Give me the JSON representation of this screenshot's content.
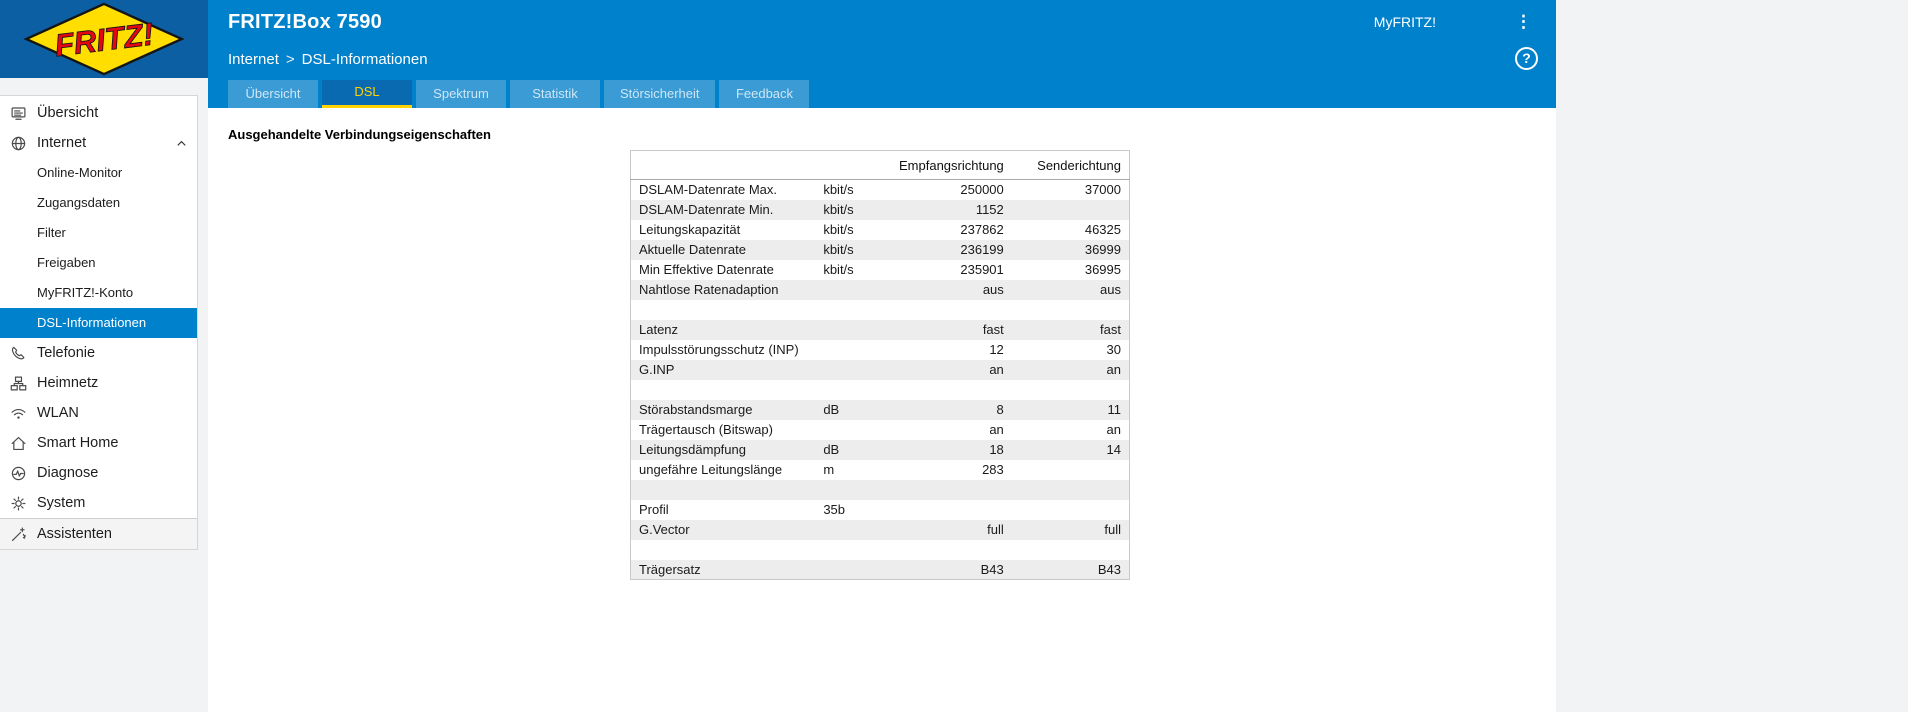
{
  "header": {
    "logo_text": "FRITZ!",
    "title": "FRITZ!Box 7590",
    "myfritz_label": "MyFRITZ!",
    "menu_icon": "kebab-menu-icon"
  },
  "breadcrumb": {
    "section": "Internet",
    "separator": ">",
    "page": "DSL-Informationen"
  },
  "help_label": "?",
  "tabs": [
    {
      "label": "Übersicht",
      "active": false
    },
    {
      "label": "DSL",
      "active": true
    },
    {
      "label": "Spektrum",
      "active": false
    },
    {
      "label": "Statistik",
      "active": false
    },
    {
      "label": "Störsicherheit",
      "active": false
    },
    {
      "label": "Feedback",
      "active": false
    }
  ],
  "sidebar": {
    "items": [
      {
        "label": "Übersicht",
        "icon": "overview-icon",
        "type": "top"
      },
      {
        "label": "Internet",
        "icon": "globe-icon",
        "type": "top",
        "expanded": true,
        "children": [
          "Online-Monitor",
          "Zugangsdaten",
          "Filter",
          "Freigaben",
          "MyFRITZ!-Konto",
          "DSL-Informationen"
        ],
        "active_child": "DSL-Informationen"
      },
      {
        "label": "Telefonie",
        "icon": "phone-icon",
        "type": "top"
      },
      {
        "label": "Heimnetz",
        "icon": "network-icon",
        "type": "top"
      },
      {
        "label": "WLAN",
        "icon": "wifi-icon",
        "type": "top"
      },
      {
        "label": "Smart Home",
        "icon": "smarthome-icon",
        "type": "top"
      },
      {
        "label": "Diagnose",
        "icon": "diagnose-icon",
        "type": "top"
      },
      {
        "label": "System",
        "icon": "system-icon",
        "type": "top"
      },
      {
        "label": "Assistenten",
        "icon": "assistant-icon",
        "type": "footer"
      }
    ]
  },
  "main": {
    "heading": "Ausgehandelte Verbindungseigenschaften",
    "table": {
      "columns": [
        "",
        "",
        "Empfangsrichtung",
        "Senderichtung"
      ],
      "rows": [
        [
          "DSLAM-Datenrate Max.",
          "kbit/s",
          "250000",
          "37000"
        ],
        [
          "DSLAM-Datenrate Min.",
          "kbit/s",
          "1152",
          ""
        ],
        [
          "Leitungskapazität",
          "kbit/s",
          "237862",
          "46325"
        ],
        [
          "Aktuelle Datenrate",
          "kbit/s",
          "236199",
          "36999"
        ],
        [
          "Min Effektive Datenrate",
          "kbit/s",
          "235901",
          "36995"
        ],
        [
          "Nahtlose Ratenadaption",
          "",
          "aus",
          "aus"
        ],
        [
          "",
          "",
          "",
          ""
        ],
        [
          "Latenz",
          "",
          "fast",
          "fast"
        ],
        [
          "Impulsstörungsschutz (INP)",
          "",
          "12",
          "30"
        ],
        [
          "G.INP",
          "",
          "an",
          "an"
        ],
        [
          "",
          "",
          "",
          ""
        ],
        [
          "Störabstandsmarge",
          "dB",
          "8",
          "11"
        ],
        [
          "Trägertausch (Bitswap)",
          "",
          "an",
          "an"
        ],
        [
          "Leitungsdämpfung",
          "dB",
          "18",
          "14"
        ],
        [
          "ungefähre Leitungslänge",
          "m",
          "283",
          ""
        ],
        [
          "",
          "",
          "",
          ""
        ],
        [
          "Profil",
          "35b",
          "",
          ""
        ],
        [
          "G.Vector",
          "",
          "full",
          "full"
        ],
        [
          "",
          "",
          "",
          ""
        ],
        [
          "Trägersatz",
          "",
          "B43",
          "B43"
        ]
      ]
    }
  }
}
